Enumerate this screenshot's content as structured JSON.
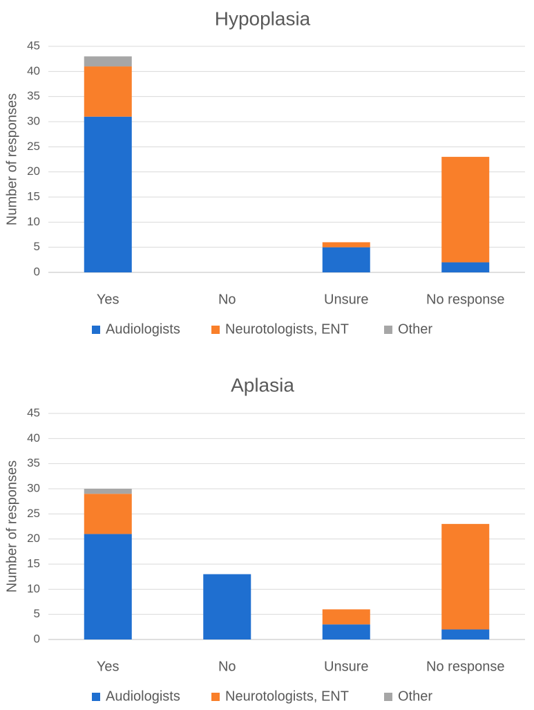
{
  "chart_data": [
    {
      "type": "bar",
      "stacked": true,
      "title": "Hypoplasia",
      "xlabel": "",
      "ylabel": "Number of responses",
      "ylim": [
        0,
        45
      ],
      "yticks": [
        0,
        5,
        10,
        15,
        20,
        25,
        30,
        35,
        40,
        45
      ],
      "grid": true,
      "legend_position": "bottom",
      "categories": [
        "Yes",
        "No",
        "Unsure",
        "No response"
      ],
      "series": [
        {
          "name": "Audiologists",
          "color": "#1f6fd0",
          "values": [
            31,
            0,
            5,
            2
          ]
        },
        {
          "name": "Neurotologists, ENT",
          "color": "#f97f2a",
          "values": [
            10,
            0,
            1,
            21
          ]
        },
        {
          "name": "Other",
          "color": "#a6a6a6",
          "values": [
            2,
            0,
            0,
            0
          ]
        }
      ]
    },
    {
      "type": "bar",
      "stacked": true,
      "title": "Aplasia",
      "xlabel": "",
      "ylabel": "Number of responses",
      "ylim": [
        0,
        45
      ],
      "yticks": [
        0,
        5,
        10,
        15,
        20,
        25,
        30,
        35,
        40,
        45
      ],
      "grid": true,
      "legend_position": "bottom",
      "categories": [
        "Yes",
        "No",
        "Unsure",
        "No response"
      ],
      "series": [
        {
          "name": "Audiologists",
          "color": "#1f6fd0",
          "values": [
            21,
            13,
            3,
            2
          ]
        },
        {
          "name": "Neurotologists, ENT",
          "color": "#f97f2a",
          "values": [
            8,
            0,
            3,
            21
          ]
        },
        {
          "name": "Other",
          "color": "#a6a6a6",
          "values": [
            1,
            0,
            0,
            0
          ]
        }
      ]
    }
  ]
}
